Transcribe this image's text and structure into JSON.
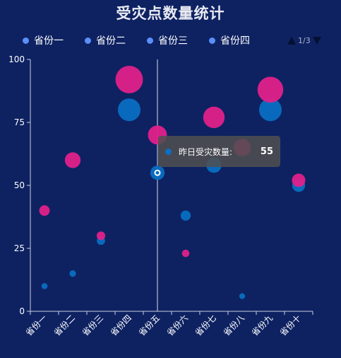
{
  "chart_data": {
    "type": "scatter",
    "title": "受灾点数量统计",
    "categories": [
      "省份一",
      "省份二",
      "省份三",
      "省份四",
      "省份五",
      "省份六",
      "省份七",
      "省份八",
      "省份九",
      "省份十"
    ],
    "ylim": [
      0,
      100
    ],
    "yticks": [
      0,
      25,
      50,
      75,
      100
    ],
    "series": [
      {
        "name": "昨日受灾数量",
        "color": "#0a6fc2",
        "values": [
          10,
          15,
          28,
          80,
          55,
          38,
          58,
          6,
          80,
          50
        ]
      },
      {
        "name": "",
        "color": "#e0218a",
        "values": [
          40,
          60,
          30,
          92,
          70,
          23,
          77,
          65,
          88,
          52
        ]
      }
    ],
    "grid": false
  },
  "legend": {
    "items": [
      "省份一",
      "省份二",
      "省份三",
      "省份四"
    ],
    "dot_color": "#5b8ff9",
    "page": "1/3"
  },
  "tooltip": {
    "label": "昨日受灾数量:",
    "value": "55",
    "category": "省份五"
  }
}
